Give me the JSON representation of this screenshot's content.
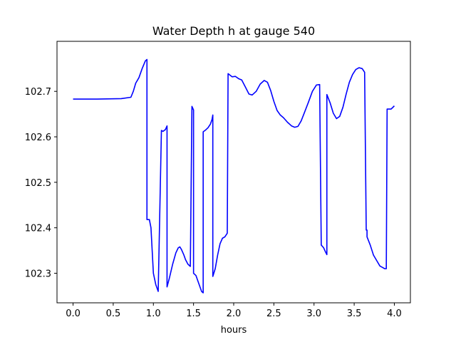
{
  "chart_data": {
    "type": "line",
    "title": "Water Depth h at gauge 540",
    "xlabel": "hours",
    "ylabel": "",
    "xlim": [
      -0.2,
      4.2
    ],
    "ylim": [
      102.235,
      102.81
    ],
    "xticks": [
      0.0,
      0.5,
      1.0,
      1.5,
      2.0,
      2.5,
      3.0,
      3.5,
      4.0
    ],
    "xtick_labels": [
      "0.0",
      "0.5",
      "1.0",
      "1.5",
      "2.0",
      "2.5",
      "3.0",
      "3.5",
      "4.0"
    ],
    "yticks": [
      102.3,
      102.4,
      102.5,
      102.6,
      102.7
    ],
    "ytick_labels": [
      "102.3",
      "102.4",
      "102.5",
      "102.6",
      "102.7"
    ],
    "grid": false,
    "series": [
      {
        "color": "#0000ff",
        "x": [
          0.0,
          0.3,
          0.6,
          0.72,
          0.75,
          0.78,
          0.82,
          0.86,
          0.9,
          0.92,
          0.92,
          0.95,
          0.97,
          1.0,
          1.03,
          1.06,
          1.1,
          1.1,
          1.12,
          1.15,
          1.17,
          1.17,
          1.2,
          1.24,
          1.28,
          1.31,
          1.33,
          1.35,
          1.38,
          1.4,
          1.43,
          1.46,
          1.48,
          1.48,
          1.5,
          1.5,
          1.53,
          1.56,
          1.6,
          1.62,
          1.62,
          1.65,
          1.68,
          1.71,
          1.73,
          1.74,
          1.74,
          1.77,
          1.8,
          1.83,
          1.86,
          1.89,
          1.92,
          1.93,
          1.93,
          1.98,
          2.02,
          2.06,
          2.1,
          2.15,
          2.19,
          2.23,
          2.28,
          2.33,
          2.38,
          2.42,
          2.46,
          2.5,
          2.54,
          2.58,
          2.62,
          2.67,
          2.72,
          2.76,
          2.8,
          2.84,
          2.88,
          2.93,
          2.98,
          3.03,
          3.07,
          3.09,
          3.09,
          3.12,
          3.14,
          3.16,
          3.16,
          3.2,
          3.24,
          3.28,
          3.32,
          3.36,
          3.4,
          3.44,
          3.48,
          3.52,
          3.56,
          3.6,
          3.63,
          3.65,
          3.66,
          3.66,
          3.7,
          3.74,
          3.78,
          3.82,
          3.86,
          3.88,
          3.9,
          3.91,
          3.91,
          3.96,
          4.0
        ],
        "y": [
          102.683,
          102.683,
          102.684,
          102.687,
          102.7,
          102.718,
          102.73,
          102.75,
          102.767,
          102.77,
          102.418,
          102.418,
          102.4,
          102.3,
          102.275,
          102.26,
          102.614,
          102.614,
          102.612,
          102.616,
          102.624,
          102.27,
          102.29,
          102.32,
          102.345,
          102.356,
          102.358,
          102.352,
          102.34,
          102.33,
          102.32,
          102.315,
          102.667,
          102.667,
          102.659,
          102.3,
          102.295,
          102.28,
          102.26,
          102.257,
          102.611,
          102.615,
          102.62,
          102.628,
          102.638,
          102.648,
          102.293,
          102.31,
          102.34,
          102.365,
          102.377,
          102.38,
          102.388,
          102.739,
          102.739,
          102.732,
          102.733,
          102.728,
          102.725,
          102.708,
          102.694,
          102.692,
          102.7,
          102.716,
          102.724,
          102.72,
          102.702,
          102.678,
          102.658,
          102.648,
          102.642,
          102.632,
          102.624,
          102.621,
          102.623,
          102.635,
          102.653,
          102.676,
          102.7,
          102.714,
          102.715,
          102.362,
          102.362,
          102.356,
          102.348,
          102.341,
          102.693,
          102.675,
          102.652,
          102.64,
          102.645,
          102.665,
          102.694,
          102.72,
          102.737,
          102.748,
          102.752,
          102.75,
          102.742,
          102.395,
          102.395,
          102.38,
          102.362,
          102.34,
          102.328,
          102.316,
          102.312,
          102.31,
          102.31,
          102.661,
          102.661,
          102.661,
          102.668
        ]
      }
    ]
  }
}
